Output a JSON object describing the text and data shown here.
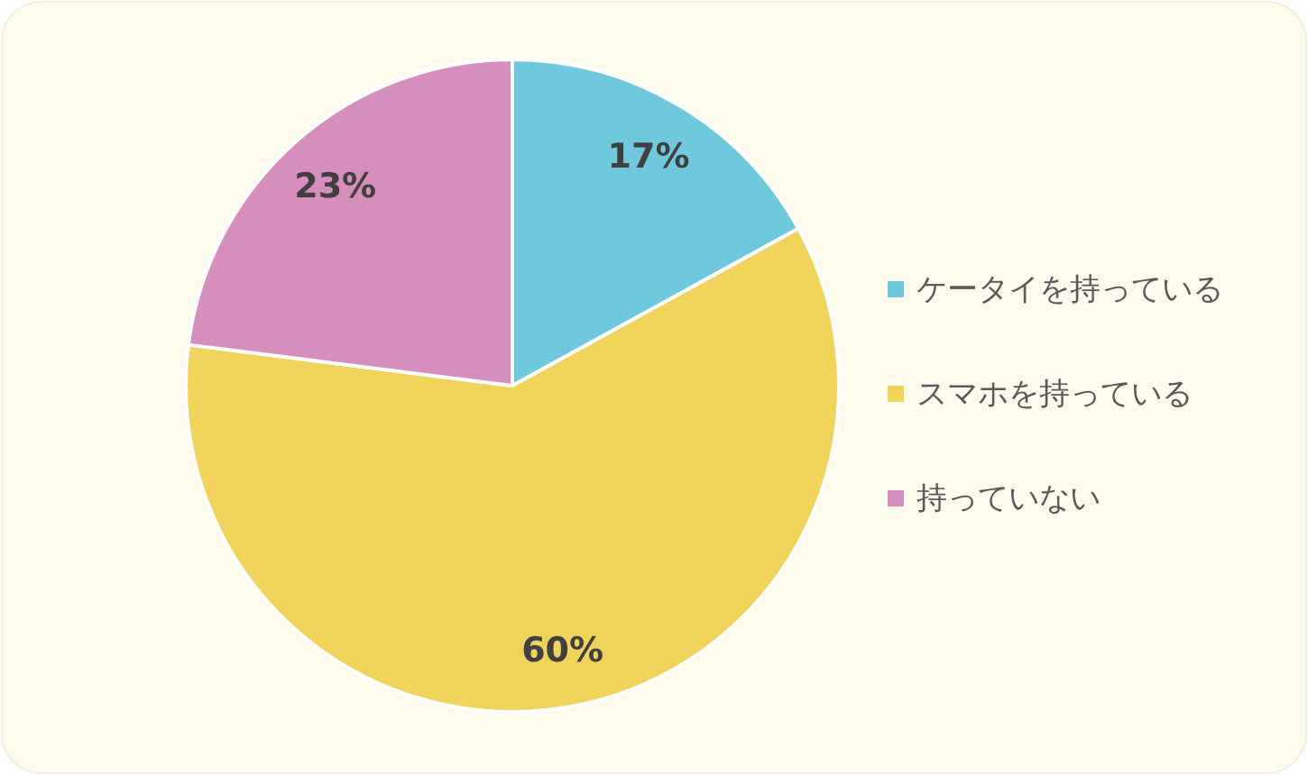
{
  "chart_data": {
    "type": "pie",
    "categories": [
      "ケータイを持っている",
      "スマホを持っている",
      "持っていない"
    ],
    "values": [
      17,
      60,
      23
    ],
    "colors": [
      "#70c8dd",
      "#efd35a",
      "#d68fbc"
    ],
    "value_labels": [
      "17%",
      "60%",
      "23%"
    ],
    "legend": "right"
  }
}
